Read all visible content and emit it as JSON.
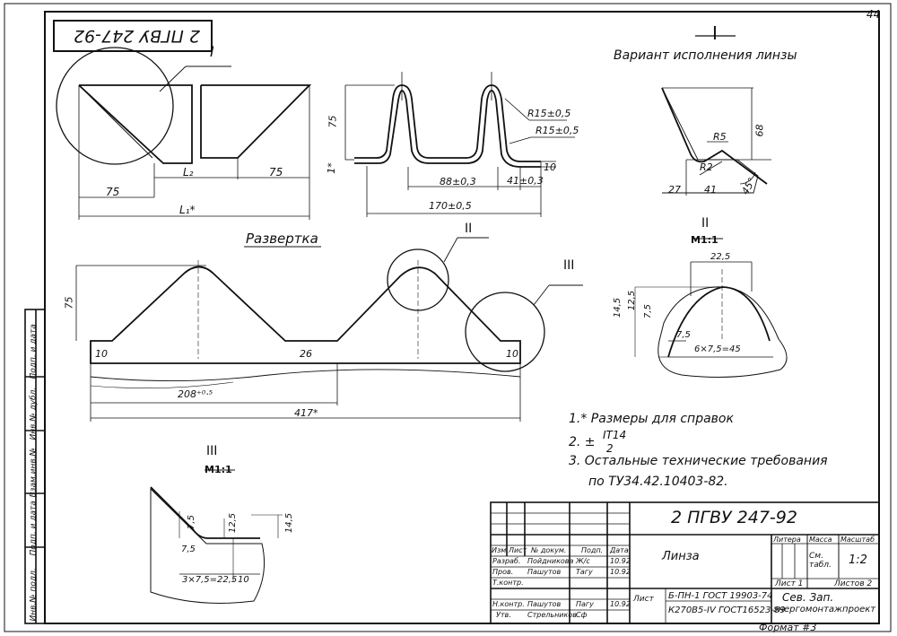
{
  "sheet_number": "44",
  "stamp_top_inverted": "2 ПГВУ 247-92",
  "view_markers": {
    "I_main": "I",
    "I_detail": "I",
    "II": "II",
    "III": "III",
    "II_detail": "II",
    "III_detail": "III"
  },
  "variant_caption": "Вариант исполнения линзы",
  "scale_label": "М1:1",
  "razvertka_title": "Развертка",
  "dims_top_left": {
    "l2": "L₂",
    "d75_right": "75",
    "d75_left": "75",
    "l1": "L₁*"
  },
  "dims_top_middle": {
    "height": "75",
    "note1": "1*",
    "r1": "R15±0,5",
    "r2": "R15±0,5",
    "d10": "10",
    "d41": "41±0,3",
    "d88": "88±0,3",
    "d170": "170±0,5"
  },
  "dims_detail_I": {
    "r5": "R5",
    "r2": "R2",
    "d68": "68",
    "d27": "27",
    "d41": "41",
    "angle": "45°"
  },
  "dims_razvertka": {
    "h75": "75",
    "d10l": "10",
    "d26": "26",
    "d10r": "10",
    "d208": "208⁺⁰·⁵",
    "d417": "417*"
  },
  "dims_detail_II": {
    "d22": "22,5",
    "d14": "14,5",
    "d12": "12,5",
    "d7a": "7,5",
    "d7b": "7,5",
    "d6x": "6×7,5=45"
  },
  "dims_detail_III": {
    "d7a": "7,5",
    "d12": "12,5",
    "d14": "14,5",
    "d7b": "7,5",
    "d3x": "3×7,5=22,5",
    "d10": "10"
  },
  "notes": {
    "n1": "1.* Размеры для справок",
    "n2_prefix": "2.  ±",
    "n2_num": "IT14",
    "n2_den": "2",
    "n3_line1": "3.  Остальные  технические  требования",
    "n3_line2": "по  ТУ34.42.10403-82."
  },
  "left_margin_labels": [
    "Инв.№ подл.",
    "Подп. и дата",
    "Взам.инв.№",
    "Инв.№ дубл.",
    "Подп. и дата"
  ],
  "title_block": {
    "doc_code": "2 ПГВУ 247-92",
    "part_name": "Линза",
    "head_cols": [
      "Изм.",
      "Лист",
      "№ докум.",
      "Подп.",
      "Дата"
    ],
    "rows": [
      {
        "role": "Разраб.",
        "name": "Пойдникова",
        "sign": "Ж/с",
        "date": "10.92"
      },
      {
        "role": "Пров.",
        "name": "Пашутов",
        "sign": "Тагу",
        "date": "10.92"
      },
      {
        "role": "Т.контр.",
        "name": "",
        "sign": "",
        "date": ""
      },
      {
        "role": "Н.контр.",
        "name": "Пашутов",
        "sign": "Пагу",
        "date": "10.92"
      },
      {
        "role": "Утв.",
        "name": "Стрельников",
        "sign": "Сф",
        "date": ""
      }
    ],
    "litera_label": "Литера",
    "mass_label": "Масса",
    "scale_label": "Масштаб",
    "mass_value": "См. табл.",
    "scale_value": "1:2",
    "sheet_label": "Лист 1",
    "sheets_label": "Листов 2",
    "list_label": "Лист",
    "material1": "Б-ПН-1 ГОСТ 19903-74",
    "material2": "К270В5-IV ГОСТ16523-89",
    "org1": "Сев. Зап.",
    "org2": "энергомонтажпроект",
    "format_label": "Формат #3"
  }
}
